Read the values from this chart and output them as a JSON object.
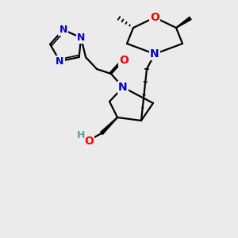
{
  "bg_color": "#ebebeb",
  "atom_colors": {
    "C": "#000000",
    "N": "#0000cc",
    "O": "#ff0000",
    "H": "#5f9ea0"
  },
  "bond_color": "#000000",
  "bond_width": 1.6,
  "figsize": [
    3.0,
    3.0
  ],
  "dpi": 100
}
